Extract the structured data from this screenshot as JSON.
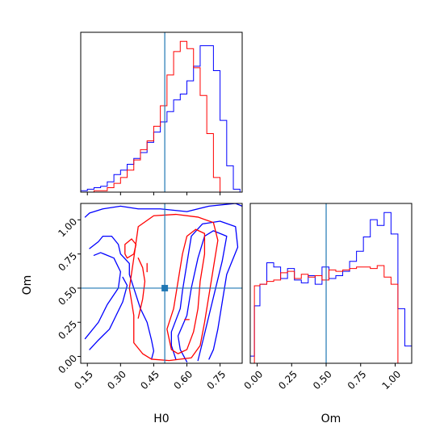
{
  "chart_data": {
    "type": "corner",
    "colors": {
      "series_a": "#0000ff",
      "series_b": "#ff0000",
      "truth": "#1f77b4"
    },
    "parameters": [
      "H0",
      "Om"
    ],
    "truth": {
      "H0": 0.5,
      "Om": 0.5
    },
    "xlabels": {
      "H0": "H0",
      "Om": "Om"
    },
    "ylabels": {
      "Om": "Om"
    },
    "H0_ticks": [
      "0.15",
      "0.30",
      "0.45",
      "0.60",
      "0.75"
    ],
    "H0_tick_values": [
      0.15,
      0.3,
      0.45,
      0.6,
      0.75
    ],
    "Om_ticks": [
      "0.00",
      "0.25",
      "0.50",
      "0.75",
      "1.00"
    ],
    "Om_tick_values": [
      0.0,
      0.25,
      0.5,
      0.75,
      1.0
    ],
    "H0_range": [
      0.12,
      0.85
    ],
    "Om_range": [
      -0.05,
      1.12
    ],
    "hist_H0": {
      "bin_edges": [
        0.12,
        0.15,
        0.18,
        0.21,
        0.24,
        0.27,
        0.3,
        0.33,
        0.36,
        0.39,
        0.42,
        0.45,
        0.48,
        0.51,
        0.54,
        0.57,
        0.6,
        0.63,
        0.66,
        0.69,
        0.72,
        0.75,
        0.78,
        0.81,
        0.84
      ],
      "series": [
        {
          "color": "blue",
          "values": [
            1,
            2,
            3,
            4,
            7,
            12,
            15,
            19,
            23,
            27,
            34,
            41,
            48,
            55,
            63,
            67,
            76,
            86,
            100,
            100,
            83,
            49,
            18,
            2
          ]
        },
        {
          "color": "red",
          "values": [
            0,
            0,
            1,
            1,
            3,
            6,
            10,
            15,
            22,
            29,
            35,
            45,
            59,
            80,
            96,
            103,
            98,
            85,
            66,
            40,
            10,
            0,
            0,
            0
          ]
        }
      ]
    },
    "hist_Om": {
      "bin_edges": [
        -0.08,
        -0.02,
        0.02,
        0.07,
        0.12,
        0.17,
        0.22,
        0.27,
        0.32,
        0.37,
        0.42,
        0.47,
        0.52,
        0.57,
        0.62,
        0.67,
        0.72,
        0.77,
        0.82,
        0.87,
        0.92,
        0.97,
        1.02,
        1.07,
        1.12
      ],
      "series": [
        {
          "color": "blue",
          "values": [
            5,
            40,
            55,
            70,
            67,
            59,
            66,
            58,
            56,
            61,
            55,
            67,
            59,
            61,
            64,
            71,
            78,
            88,
            100,
            96,
            105,
            90,
            38,
            12
          ]
        },
        {
          "color": "red",
          "values": [
            0,
            54,
            55,
            57,
            58,
            63,
            64,
            59,
            62,
            60,
            61,
            58,
            65,
            64,
            65,
            66,
            67,
            67,
            66,
            68,
            60,
            55,
            0,
            0
          ]
        }
      ]
    },
    "contours": [
      {
        "color": "blue",
        "path": [
          [
            0.14,
            1.02
          ],
          [
            0.16,
            1.05
          ],
          [
            0.22,
            1.08
          ],
          [
            0.3,
            1.1
          ],
          [
            0.38,
            1.08
          ],
          [
            0.48,
            1.08
          ],
          [
            0.6,
            1.06
          ],
          [
            0.7,
            1.1
          ],
          [
            0.82,
            1.12
          ],
          [
            0.85,
            1.1
          ]
        ]
      },
      {
        "color": "blue",
        "path": [
          [
            0.16,
            0.79
          ],
          [
            0.2,
            0.84
          ],
          [
            0.22,
            0.88
          ],
          [
            0.26,
            0.88
          ],
          [
            0.29,
            0.82
          ],
          [
            0.3,
            0.75
          ],
          [
            0.34,
            0.68
          ],
          [
            0.34,
            0.6
          ],
          [
            0.36,
            0.5
          ],
          [
            0.39,
            0.35
          ],
          [
            0.42,
            0.25
          ],
          [
            0.44,
            0.12
          ],
          [
            0.45,
            0.04
          ],
          [
            0.44,
            -0.02
          ]
        ]
      },
      {
        "color": "blue",
        "path": [
          [
            0.14,
            0.13
          ],
          [
            0.2,
            0.25
          ],
          [
            0.24,
            0.38
          ],
          [
            0.29,
            0.5
          ],
          [
            0.3,
            0.62
          ],
          [
            0.27,
            0.72
          ],
          [
            0.21,
            0.76
          ],
          [
            0.18,
            0.74
          ]
        ]
      },
      {
        "color": "blue",
        "path": [
          [
            0.16,
            0.05
          ],
          [
            0.2,
            0.12
          ],
          [
            0.25,
            0.2
          ],
          [
            0.28,
            0.3
          ],
          [
            0.31,
            0.4
          ],
          [
            0.33,
            0.52
          ],
          [
            0.31,
            0.58
          ]
        ]
      },
      {
        "color": "blue",
        "path": [
          [
            0.55,
            -0.02
          ],
          [
            0.53,
            0.08
          ],
          [
            0.53,
            0.18
          ],
          [
            0.57,
            0.35
          ],
          [
            0.58,
            0.48
          ],
          [
            0.6,
            0.68
          ],
          [
            0.62,
            0.88
          ],
          [
            0.67,
            0.97
          ],
          [
            0.75,
            0.99
          ],
          [
            0.82,
            0.95
          ],
          [
            0.83,
            0.8
          ],
          [
            0.78,
            0.6
          ],
          [
            0.76,
            0.4
          ],
          [
            0.74,
            0.2
          ],
          [
            0.72,
            0.05
          ],
          [
            0.7,
            -0.02
          ]
        ]
      },
      {
        "color": "blue",
        "path": [
          [
            0.6,
            -0.04
          ],
          [
            0.57,
            0.05
          ],
          [
            0.56,
            0.15
          ],
          [
            0.6,
            0.3
          ],
          [
            0.62,
            0.5
          ],
          [
            0.65,
            0.72
          ],
          [
            0.68,
            0.88
          ],
          [
            0.72,
            0.92
          ],
          [
            0.78,
            0.88
          ],
          [
            0.76,
            0.7
          ],
          [
            0.73,
            0.5
          ],
          [
            0.7,
            0.3
          ],
          [
            0.67,
            0.1
          ],
          [
            0.65,
            -0.03
          ]
        ]
      },
      {
        "color": "red",
        "path": [
          [
            0.4,
            0.02
          ],
          [
            0.36,
            0.1
          ],
          [
            0.36,
            0.3
          ],
          [
            0.34,
            0.5
          ],
          [
            0.36,
            0.72
          ],
          [
            0.38,
            0.95
          ],
          [
            0.45,
            1.03
          ],
          [
            0.55,
            1.04
          ],
          [
            0.65,
            1.02
          ],
          [
            0.72,
            0.98
          ],
          [
            0.74,
            0.85
          ],
          [
            0.72,
            0.65
          ],
          [
            0.7,
            0.45
          ],
          [
            0.68,
            0.25
          ],
          [
            0.66,
            0.08
          ],
          [
            0.62,
            -0.01
          ],
          [
            0.52,
            -0.03
          ],
          [
            0.44,
            -0.02
          ],
          [
            0.4,
            0.02
          ]
        ]
      },
      {
        "color": "red",
        "path": [
          [
            0.53,
            0.05
          ],
          [
            0.51,
            0.2
          ],
          [
            0.54,
            0.35
          ],
          [
            0.56,
            0.55
          ],
          [
            0.58,
            0.75
          ],
          [
            0.6,
            0.88
          ],
          [
            0.64,
            0.93
          ],
          [
            0.68,
            0.9
          ],
          [
            0.68,
            0.75
          ],
          [
            0.66,
            0.55
          ],
          [
            0.65,
            0.35
          ],
          [
            0.63,
            0.18
          ],
          [
            0.6,
            0.05
          ],
          [
            0.56,
            0.02
          ],
          [
            0.53,
            0.05
          ]
        ]
      },
      {
        "color": "red",
        "path": [
          [
            0.33,
            0.72
          ],
          [
            0.36,
            0.75
          ],
          [
            0.37,
            0.82
          ],
          [
            0.35,
            0.86
          ],
          [
            0.32,
            0.82
          ],
          [
            0.32,
            0.75
          ],
          [
            0.33,
            0.72
          ]
        ]
      },
      {
        "color": "red",
        "path": [
          [
            0.38,
            0.28
          ],
          [
            0.4,
            0.42
          ],
          [
            0.41,
            0.55
          ],
          [
            0.4,
            0.65
          ],
          [
            0.38,
            0.72
          ]
        ]
      },
      {
        "color": "red",
        "path": [
          [
            0.42,
            0.62
          ],
          [
            0.42,
            0.68
          ]
        ]
      },
      {
        "color": "red",
        "path": [
          [
            0.59,
            0.27
          ],
          [
            0.61,
            0.27
          ]
        ]
      }
    ]
  }
}
